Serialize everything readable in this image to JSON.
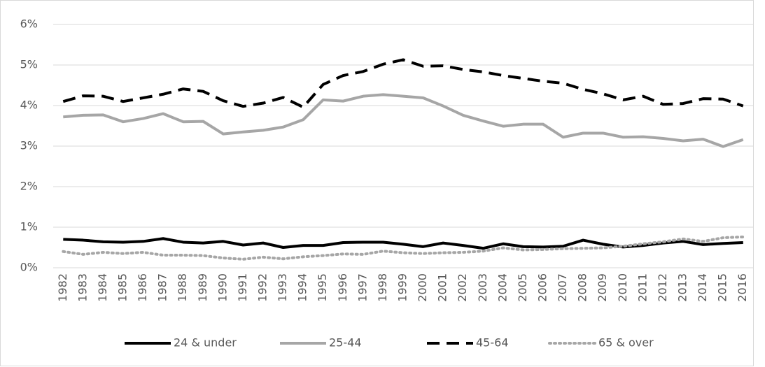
{
  "chart_data": {
    "type": "line",
    "categories": [
      "1982",
      "1983",
      "1984",
      "1985",
      "1986",
      "1987",
      "1988",
      "1989",
      "1990",
      "1991",
      "1992",
      "1993",
      "1994",
      "1995",
      "1996",
      "1997",
      "1998",
      "1999",
      "2000",
      "2001",
      "2002",
      "2003",
      "2004",
      "2005",
      "2006",
      "2007",
      "2008",
      "2009",
      "2010",
      "2011",
      "2012",
      "2013",
      "2014",
      "2015",
      "2016"
    ],
    "series": [
      {
        "name": "24 & under",
        "color": "#000000",
        "dash": "solid",
        "values": [
          0.7,
          0.68,
          0.64,
          0.63,
          0.65,
          0.72,
          0.63,
          0.61,
          0.65,
          0.56,
          0.61,
          0.5,
          0.55,
          0.55,
          0.62,
          0.63,
          0.63,
          0.58,
          0.52,
          0.61,
          0.55,
          0.48,
          0.59,
          0.52,
          0.51,
          0.53,
          0.68,
          0.58,
          0.51,
          0.55,
          0.61,
          0.65,
          0.57,
          0.6,
          0.62
        ]
      },
      {
        "name": "25-44",
        "color": "#a6a6a6",
        "dash": "solid",
        "values": [
          3.72,
          3.76,
          3.77,
          3.6,
          3.68,
          3.8,
          3.6,
          3.61,
          3.3,
          3.35,
          3.39,
          3.47,
          3.65,
          4.14,
          4.11,
          4.23,
          4.27,
          4.23,
          4.19,
          3.99,
          3.76,
          3.62,
          3.49,
          3.54,
          3.54,
          3.22,
          3.32,
          3.32,
          3.22,
          3.23,
          3.19,
          3.13,
          3.17,
          2.99,
          3.16
        ]
      },
      {
        "name": "45-64",
        "color": "#000000",
        "dash": "dashed",
        "values": [
          4.1,
          4.24,
          4.23,
          4.1,
          4.19,
          4.28,
          4.41,
          4.35,
          4.12,
          3.98,
          4.06,
          4.2,
          3.96,
          4.52,
          4.74,
          4.84,
          5.02,
          5.13,
          4.97,
          4.98,
          4.89,
          4.83,
          4.74,
          4.67,
          4.6,
          4.55,
          4.4,
          4.29,
          4.14,
          4.23,
          4.03,
          4.05,
          4.17,
          4.16,
          3.99
        ]
      },
      {
        "name": "65 & over",
        "color": "#a6a6a6",
        "dash": "dotted",
        "values": [
          0.4,
          0.33,
          0.38,
          0.35,
          0.38,
          0.31,
          0.31,
          0.3,
          0.24,
          0.21,
          0.26,
          0.22,
          0.27,
          0.3,
          0.34,
          0.33,
          0.41,
          0.37,
          0.35,
          0.37,
          0.38,
          0.41,
          0.49,
          0.44,
          0.45,
          0.47,
          0.48,
          0.49,
          0.53,
          0.59,
          0.64,
          0.71,
          0.65,
          0.74,
          0.76
        ]
      }
    ],
    "ylim": [
      0,
      6
    ],
    "yticks": [
      {
        "value": 0,
        "label": "0%"
      },
      {
        "value": 1,
        "label": "1%"
      },
      {
        "value": 2,
        "label": "2%"
      },
      {
        "value": 3,
        "label": "3%"
      },
      {
        "value": 4,
        "label": "4%"
      },
      {
        "value": 5,
        "label": "5%"
      },
      {
        "value": 6,
        "label": "6%"
      }
    ],
    "grid": true,
    "legend": "bottom"
  }
}
